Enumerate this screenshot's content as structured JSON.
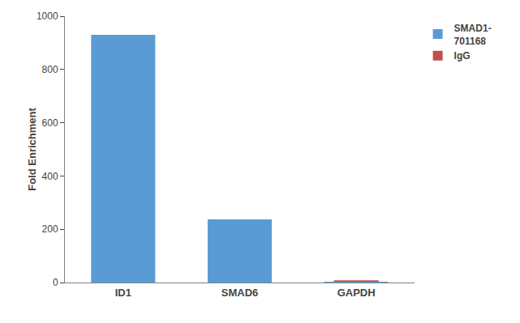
{
  "chart_data": {
    "type": "bar",
    "categories": [
      "ID1",
      "SMAD6",
      "GAPDH"
    ],
    "series": [
      {
        "name": "SMAD1-\n701168",
        "color": "#5B9BD5",
        "values": [
          930,
          237,
          3
        ]
      },
      {
        "name": "IgG",
        "color": "#C0504D",
        "values": [
          1,
          1,
          8
        ]
      }
    ],
    "ylabel": "Fold Enrichment",
    "ylim": [
      0,
      1000
    ],
    "yticks": [
      0,
      200,
      400,
      600,
      800,
      1000
    ],
    "grid": false,
    "legend": "right"
  }
}
